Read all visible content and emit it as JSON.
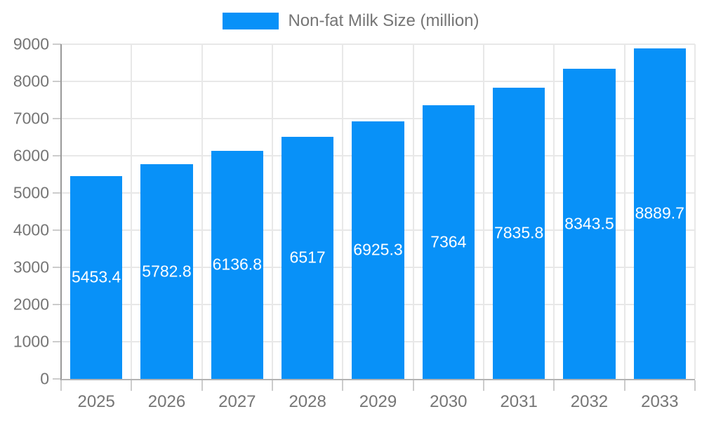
{
  "chart_data": {
    "type": "bar",
    "title": "",
    "categories": [
      "2025",
      "2026",
      "2027",
      "2028",
      "2029",
      "2030",
      "2031",
      "2032",
      "2033"
    ],
    "series": [
      {
        "name": "Non-fat Milk Size (million)",
        "values": [
          5453.4,
          5782.8,
          6136.8,
          6517,
          6925.3,
          7364,
          7835.8,
          8343.5,
          8889.7
        ]
      }
    ],
    "xlabel": "",
    "ylabel": "",
    "ylim": [
      0,
      9000
    ],
    "yticks": [
      0,
      1000,
      2000,
      3000,
      4000,
      5000,
      6000,
      7000,
      8000,
      9000
    ],
    "grid": true,
    "legend_position": "top",
    "bar_labels": true
  },
  "colors": {
    "bar": "#0891f8",
    "grid": "#e8e8e8",
    "axis_line": "#b3b3b3",
    "yaxis_line": "#999999",
    "tick": "#cccccc",
    "axis_text": "#757575",
    "bar_label_text": "#ffffff",
    "background": "#ffffff"
  }
}
